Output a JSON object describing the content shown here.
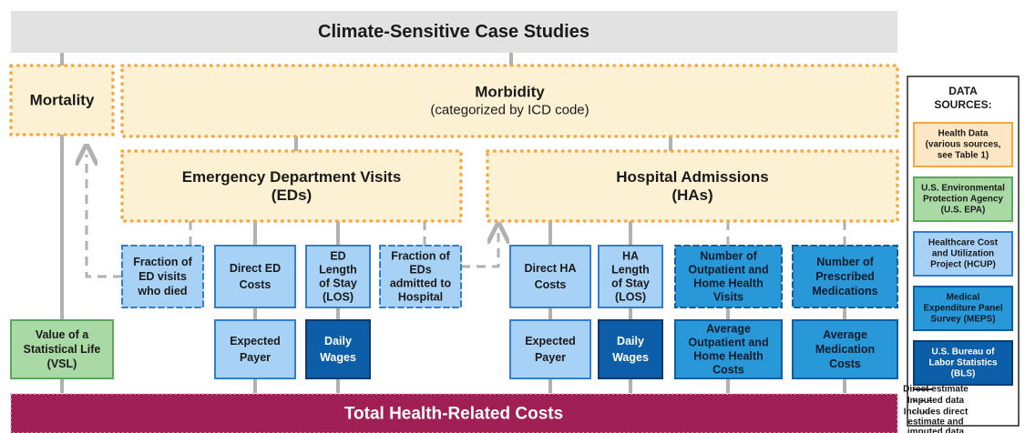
{
  "header": {
    "title": "Climate-Sensitive Case Studies"
  },
  "footer": {
    "title": "Total Health-Related Costs"
  },
  "nodes": [
    {
      "title": [
        "Mortality"
      ]
    },
    {
      "title": [
        "Morbidity"
      ],
      "subtitle": "(categorized by ICD code)"
    },
    {
      "title": [
        "Emergency Department Visits",
        "(EDs)"
      ]
    },
    {
      "title": [
        "Hospital Admissions",
        "(HAs)"
      ]
    },
    {
      "title": [
        "Fraction of",
        "ED visits",
        "who died"
      ]
    },
    {
      "title": [
        "Direct ED",
        "Costs"
      ]
    },
    {
      "title": [
        "ED",
        "Length",
        "of Stay",
        "(LOS)"
      ]
    },
    {
      "title": [
        "Fraction of",
        "EDs",
        "admitted to",
        "Hospital"
      ]
    },
    {
      "title": [
        "Direct HA",
        "Costs"
      ]
    },
    {
      "title": [
        "HA",
        "Length",
        "of Stay",
        "(LOS)"
      ]
    },
    {
      "title": [
        "Number of",
        "Outpatient and",
        "Home Health",
        "Visits"
      ]
    },
    {
      "title": [
        "Number of",
        "Prescribed",
        "Medications"
      ]
    },
    {
      "title": [
        "Value of a",
        "Statistical Life",
        "(VSL)"
      ]
    },
    {
      "title": [
        "Expected",
        "Payer"
      ]
    },
    {
      "title": [
        "Daily",
        "Wages"
      ]
    },
    {
      "title": [
        "Expected",
        "Payer"
      ]
    },
    {
      "title": [
        "Daily",
        "Wages"
      ]
    },
    {
      "title": [
        "Average",
        "Outpatient and",
        "Home Health",
        "Costs"
      ]
    },
    {
      "title": [
        "Average",
        "Medication",
        "Costs"
      ]
    }
  ],
  "legend": {
    "title": [
      "DATA",
      "SOURCES:"
    ],
    "sources": [
      {
        "title": [
          "Health Data",
          "(various sources,",
          "see Table 1)"
        ]
      },
      {
        "title": [
          "U.S. Environmental",
          "Protection Agency",
          "(U.S. EPA)"
        ]
      },
      {
        "title": [
          "Healthcare Cost",
          "and Utilization",
          "Project (HCUP)"
        ]
      },
      {
        "title": [
          "Medical",
          "Expenditure Panel",
          "Survey (MEPS)"
        ]
      },
      {
        "title": [
          "U.S. Bureau of",
          "Labor Statistics",
          "(BLS)"
        ]
      }
    ],
    "line_styles": [
      {
        "title": [
          "Direct estimate"
        ]
      },
      {
        "title": [
          "Imputed data"
        ]
      },
      {
        "title": [
          "Includes direct",
          "estimate and",
          "imputed data"
        ]
      }
    ]
  }
}
